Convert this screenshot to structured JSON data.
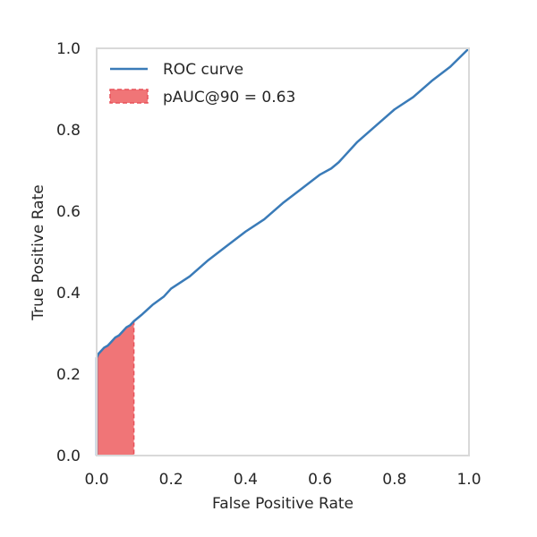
{
  "chart_data": {
    "type": "line",
    "title": "",
    "xlabel": "False Positive Rate",
    "ylabel": "True Positive Rate",
    "xlim": [
      0.0,
      1.0
    ],
    "ylim": [
      0.0,
      1.0
    ],
    "xticks": [
      "0.0",
      "0.2",
      "0.4",
      "0.6",
      "0.8",
      "1.0"
    ],
    "yticks": [
      "0.0",
      "0.2",
      "0.4",
      "0.6",
      "0.8",
      "1.0"
    ],
    "grid": false,
    "legend_position": "top-left",
    "series": [
      {
        "name": "ROC curve",
        "color": "#3a7bb8",
        "x": [
          0.0,
          0.0,
          0.005,
          0.01,
          0.02,
          0.03,
          0.04,
          0.05,
          0.06,
          0.07,
          0.08,
          0.09,
          0.1,
          0.12,
          0.15,
          0.18,
          0.2,
          0.25,
          0.3,
          0.35,
          0.4,
          0.45,
          0.5,
          0.55,
          0.6,
          0.63,
          0.65,
          0.7,
          0.75,
          0.8,
          0.85,
          0.9,
          0.95,
          1.0
        ],
        "y": [
          0.0,
          0.24,
          0.25,
          0.255,
          0.265,
          0.27,
          0.28,
          0.29,
          0.295,
          0.305,
          0.315,
          0.32,
          0.33,
          0.345,
          0.37,
          0.39,
          0.41,
          0.44,
          0.48,
          0.515,
          0.55,
          0.58,
          0.62,
          0.655,
          0.69,
          0.705,
          0.72,
          0.77,
          0.81,
          0.85,
          0.88,
          0.92,
          0.955,
          1.0
        ]
      }
    ],
    "shaded_region": {
      "name": "pAUC@90 = 0.63",
      "color": "#f07577",
      "edge_color": "#e8525a",
      "x_max": 0.1
    }
  }
}
